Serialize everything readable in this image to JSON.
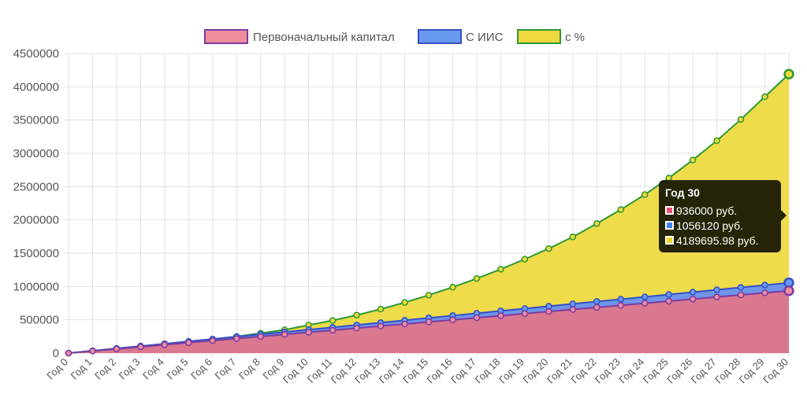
{
  "chart_data": {
    "type": "area",
    "x": [
      "Год 0",
      "Год 1",
      "Год 2",
      "Год 3",
      "Год 4",
      "Год 5",
      "Год 6",
      "Год 7",
      "Год 8",
      "Год 9",
      "Год 10",
      "Год 11",
      "Год 12",
      "Год 13",
      "Год 14",
      "Год 15",
      "Год 16",
      "Год 17",
      "Год 18",
      "Год 19",
      "Год 20",
      "Год 21",
      "Год 22",
      "Год 23",
      "Год 24",
      "Год 25",
      "Год 26",
      "Год 27",
      "Год 28",
      "Год 29",
      "Год 30"
    ],
    "ylim": [
      0,
      4500000
    ],
    "yticks": [
      "4500000",
      "4000000",
      "3500000",
      "3000000",
      "2500000",
      "2000000",
      "1500000",
      "1000000",
      "500000",
      "0"
    ],
    "grid": true,
    "legend_position": "top",
    "series": [
      {
        "name": "Первоначальный капитал",
        "fill": "#d9788f",
        "line": "#7b3aa3",
        "legend_fill": "#ef8f9c",
        "values": [
          0,
          31200,
          62400,
          93600,
          124800,
          156000,
          187200,
          218400,
          249600,
          280800,
          312000,
          343200,
          374400,
          405600,
          436800,
          468000,
          499200,
          530400,
          561600,
          592800,
          624000,
          655200,
          686400,
          717600,
          748800,
          780000,
          811200,
          842400,
          873600,
          904800,
          936000
        ]
      },
      {
        "name": "С ИИС",
        "fill": "#6f95e8",
        "line": "#3450c8",
        "legend_fill": "#6a9aef",
        "values": [
          0,
          35204,
          70408,
          105612,
          140816,
          176020,
          211224,
          246428,
          281632,
          316836,
          352040,
          387244,
          422448,
          457652,
          492856,
          528060,
          563264,
          598468,
          633672,
          668876,
          704080,
          739284,
          774488,
          809692,
          844896,
          880100,
          915304,
          950508,
          985712,
          1020916,
          1056120
        ]
      },
      {
        "name": "с %",
        "fill": "#efdc4a",
        "line": "#2c9a30",
        "legend_fill": "#f0d840",
        "values": [
          0,
          33000,
          66000,
          100000,
          134000,
          166000,
          207000,
          250000,
          298000,
          350000,
          420000,
          490000,
          570000,
          660000,
          760000,
          870000,
          990000,
          1120000,
          1260000,
          1410000,
          1570000,
          1745000,
          1945000,
          2155000,
          2380000,
          2630000,
          2900000,
          3190000,
          3510000,
          3850000,
          4189695.98
        ]
      }
    ]
  },
  "tooltip": {
    "title": "Год 30",
    "rows": [
      "936000 руб.",
      "1056120 руб.",
      "4189695.98 руб."
    ],
    "colors": [
      "#ef4f6f",
      "#3b7ff0",
      "#e8d62a"
    ]
  }
}
